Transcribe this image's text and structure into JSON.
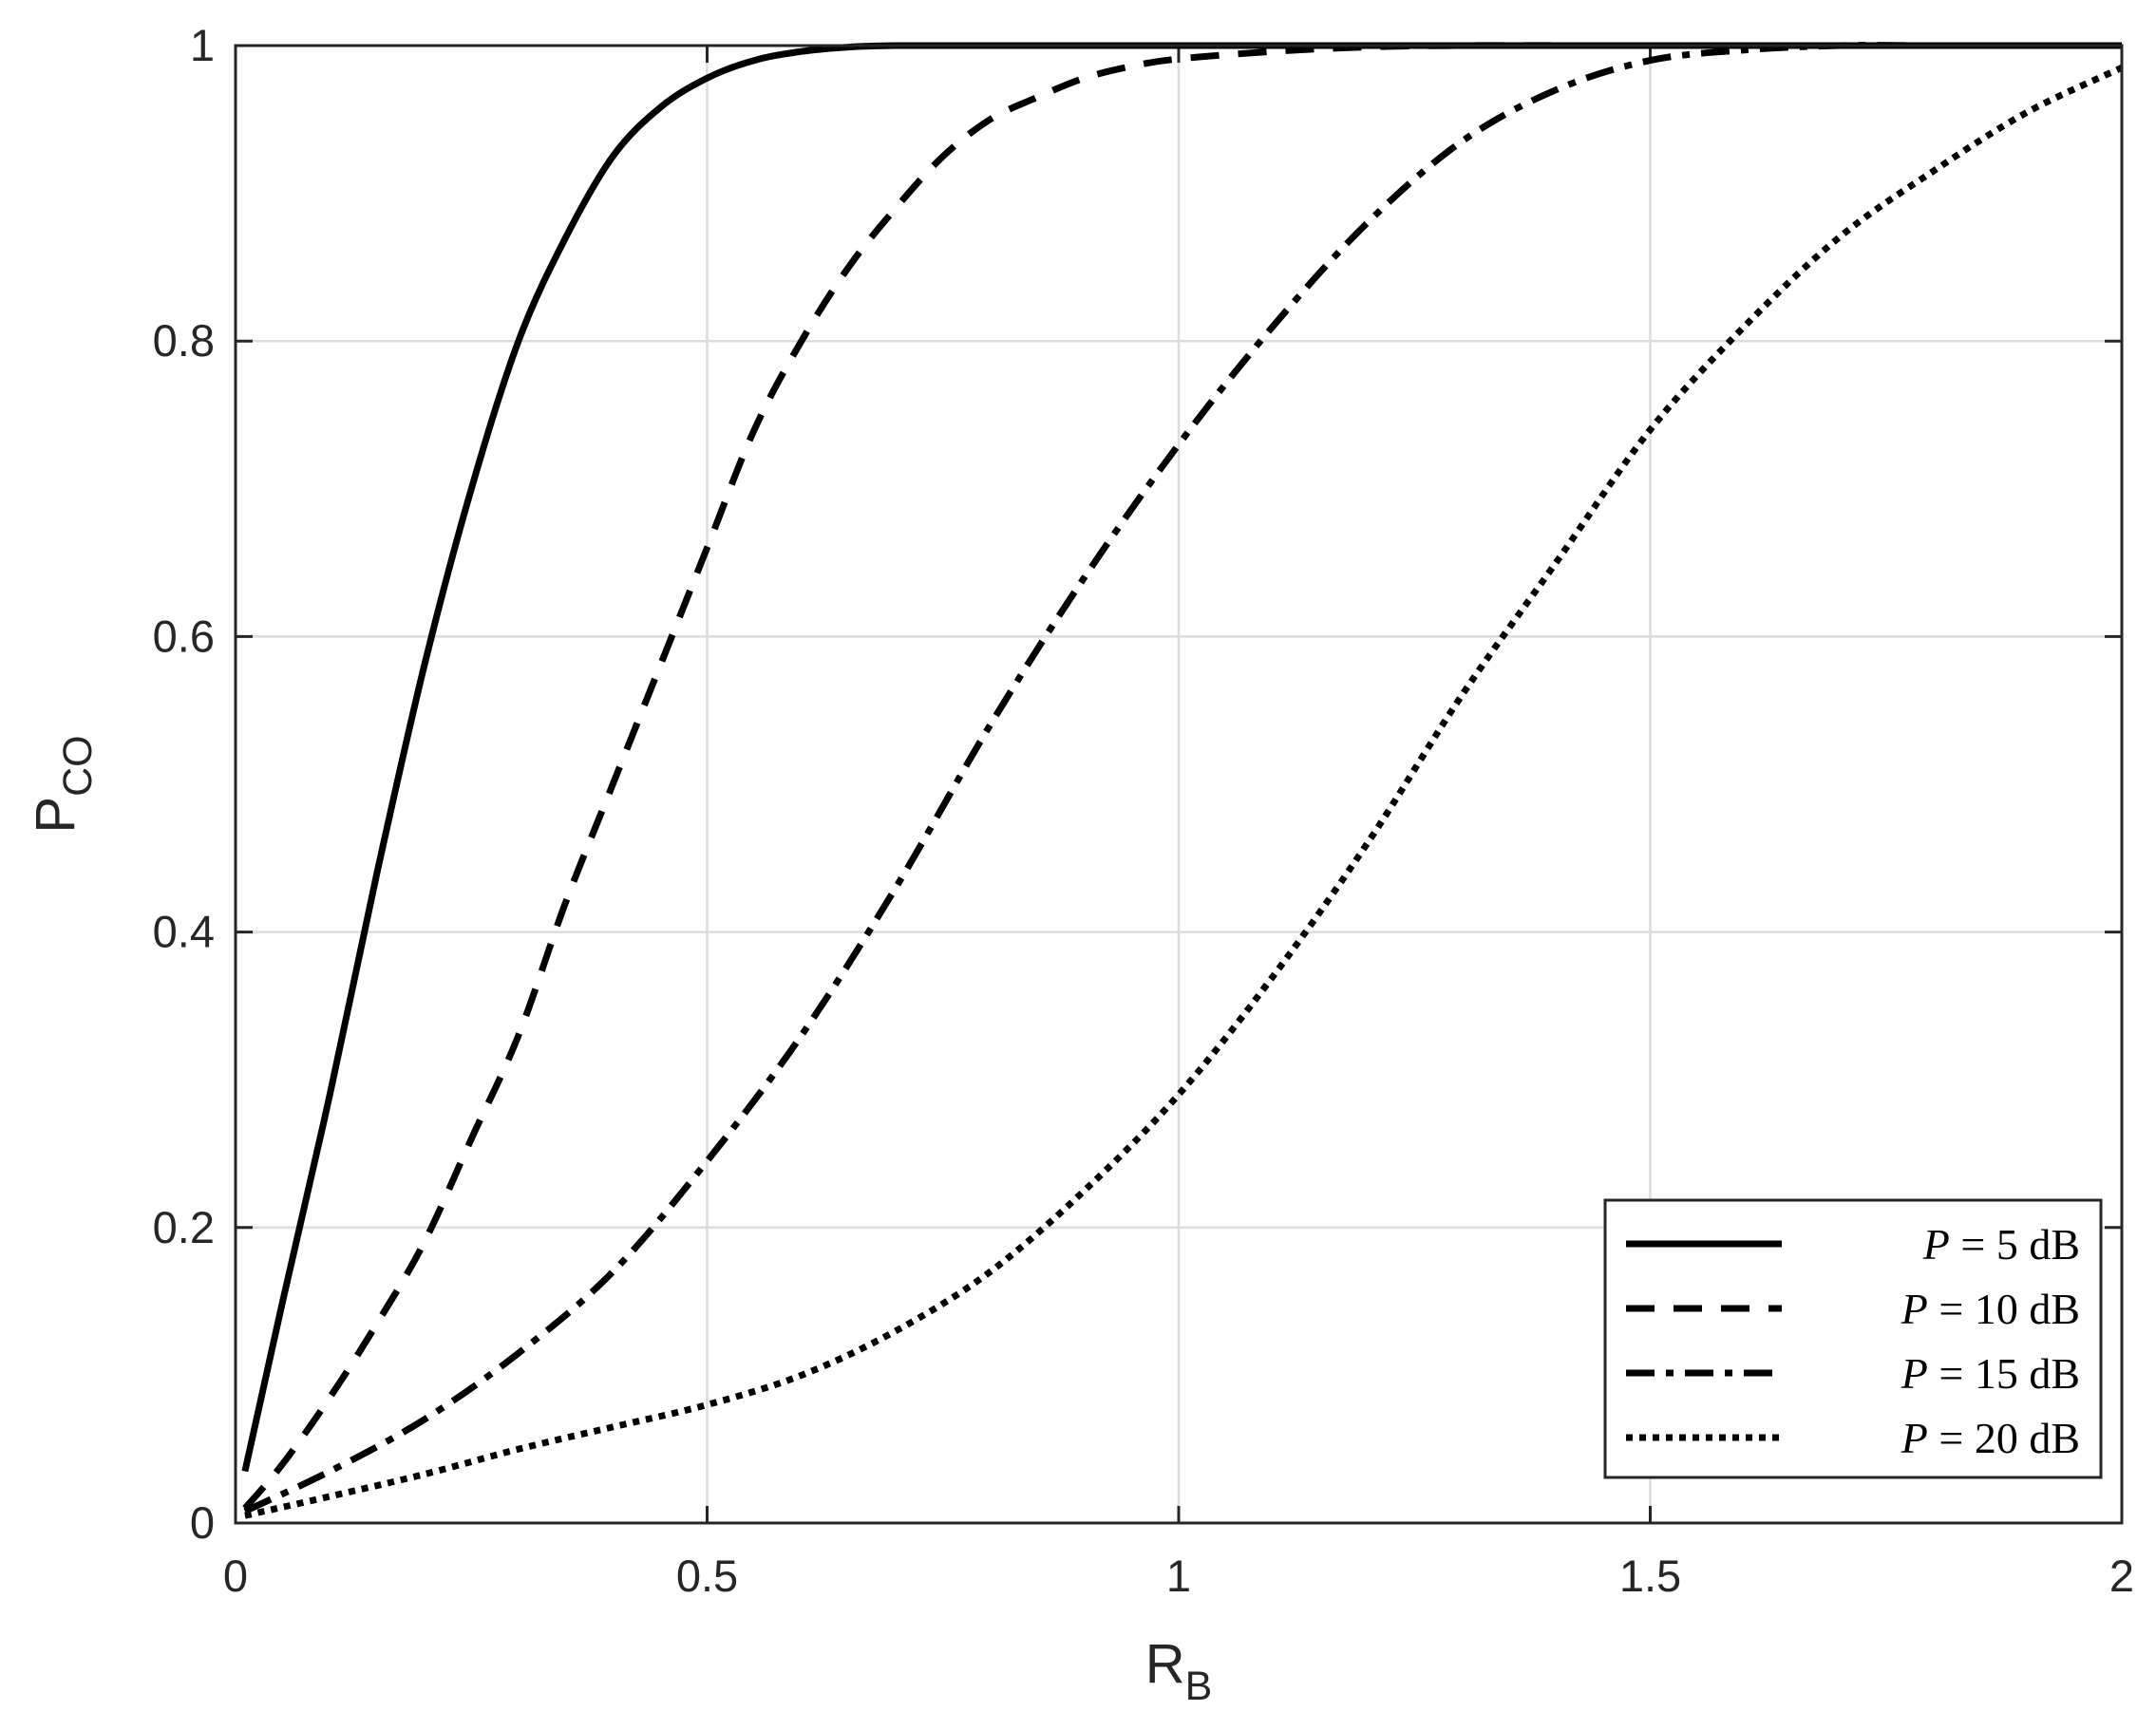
{
  "chart_data": {
    "type": "line",
    "xlabel": {
      "main": "R",
      "sub": "B"
    },
    "ylabel": {
      "main": "P",
      "sub": "CO"
    },
    "xlim": [
      0,
      2
    ],
    "ylim": [
      0,
      1
    ],
    "xticks": [
      0,
      0.5,
      1,
      1.5,
      2
    ],
    "xtick_labels": [
      "0",
      "0.5",
      "1",
      "1.5",
      "2"
    ],
    "yticks": [
      0,
      0.2,
      0.4,
      0.6,
      0.8,
      1
    ],
    "ytick_labels": [
      "0",
      "0.2",
      "0.4",
      "0.6",
      "0.8",
      "1"
    ],
    "grid": true,
    "legend_position": "bottom-right",
    "series": [
      {
        "name": "P = 5 dB",
        "legend": {
          "var": "P",
          "rest": " = 5 dB"
        },
        "style": "solid",
        "color": "#000000",
        "x": [
          0.01,
          0.05,
          0.1,
          0.15,
          0.2,
          0.25,
          0.3,
          0.35,
          0.4,
          0.45,
          0.5,
          0.55,
          0.6,
          0.65,
          0.7,
          0.8,
          1.0,
          1.5,
          2.0
        ],
        "y": [
          0.035,
          0.15,
          0.29,
          0.44,
          0.58,
          0.7,
          0.8,
          0.87,
          0.925,
          0.958,
          0.978,
          0.99,
          0.996,
          0.999,
          1.0,
          1.0,
          1.0,
          1.0,
          1.0
        ]
      },
      {
        "name": "P = 10 dB",
        "legend": {
          "var": "P",
          "rest": " = 10 dB"
        },
        "style": "dashed",
        "color": "#000000",
        "x": [
          0.01,
          0.05,
          0.1,
          0.15,
          0.2,
          0.25,
          0.3,
          0.35,
          0.4,
          0.45,
          0.5,
          0.55,
          0.6,
          0.65,
          0.7,
          0.75,
          0.8,
          0.85,
          0.9,
          0.95,
          1.0,
          1.1,
          1.2,
          1.3,
          1.5,
          2.0
        ],
        "y": [
          0.01,
          0.04,
          0.085,
          0.135,
          0.19,
          0.26,
          0.33,
          0.42,
          0.5,
          0.58,
          0.66,
          0.74,
          0.8,
          0.85,
          0.89,
          0.925,
          0.95,
          0.965,
          0.978,
          0.986,
          0.991,
          0.996,
          0.999,
          1.0,
          1.0,
          1.0
        ]
      },
      {
        "name": "P = 15 dB",
        "legend": {
          "var": "P",
          "rest": " = 15 dB"
        },
        "style": "dashdot",
        "color": "#000000",
        "x": [
          0.01,
          0.1,
          0.2,
          0.3,
          0.4,
          0.5,
          0.6,
          0.7,
          0.8,
          0.9,
          1.0,
          1.1,
          1.2,
          1.3,
          1.4,
          1.5,
          1.6,
          1.7,
          1.8,
          2.0
        ],
        "y": [
          0.008,
          0.035,
          0.07,
          0.115,
          0.17,
          0.245,
          0.33,
          0.43,
          0.54,
          0.64,
          0.73,
          0.81,
          0.88,
          0.935,
          0.97,
          0.99,
          0.997,
          1.0,
          1.0,
          1.0
        ]
      },
      {
        "name": "P = 20 dB",
        "legend": {
          "var": "P",
          "rest": " = 20 dB"
        },
        "style": "dotted",
        "color": "#000000",
        "x": [
          0.01,
          0.1,
          0.2,
          0.3,
          0.4,
          0.5,
          0.6,
          0.7,
          0.8,
          0.9,
          1.0,
          1.1,
          1.2,
          1.3,
          1.4,
          1.5,
          1.6,
          1.7,
          1.8,
          1.9,
          2.0
        ],
        "y": [
          0.005,
          0.018,
          0.033,
          0.05,
          0.065,
          0.08,
          0.1,
          0.13,
          0.17,
          0.225,
          0.29,
          0.37,
          0.46,
          0.56,
          0.65,
          0.74,
          0.81,
          0.87,
          0.915,
          0.955,
          0.985
        ]
      }
    ]
  }
}
